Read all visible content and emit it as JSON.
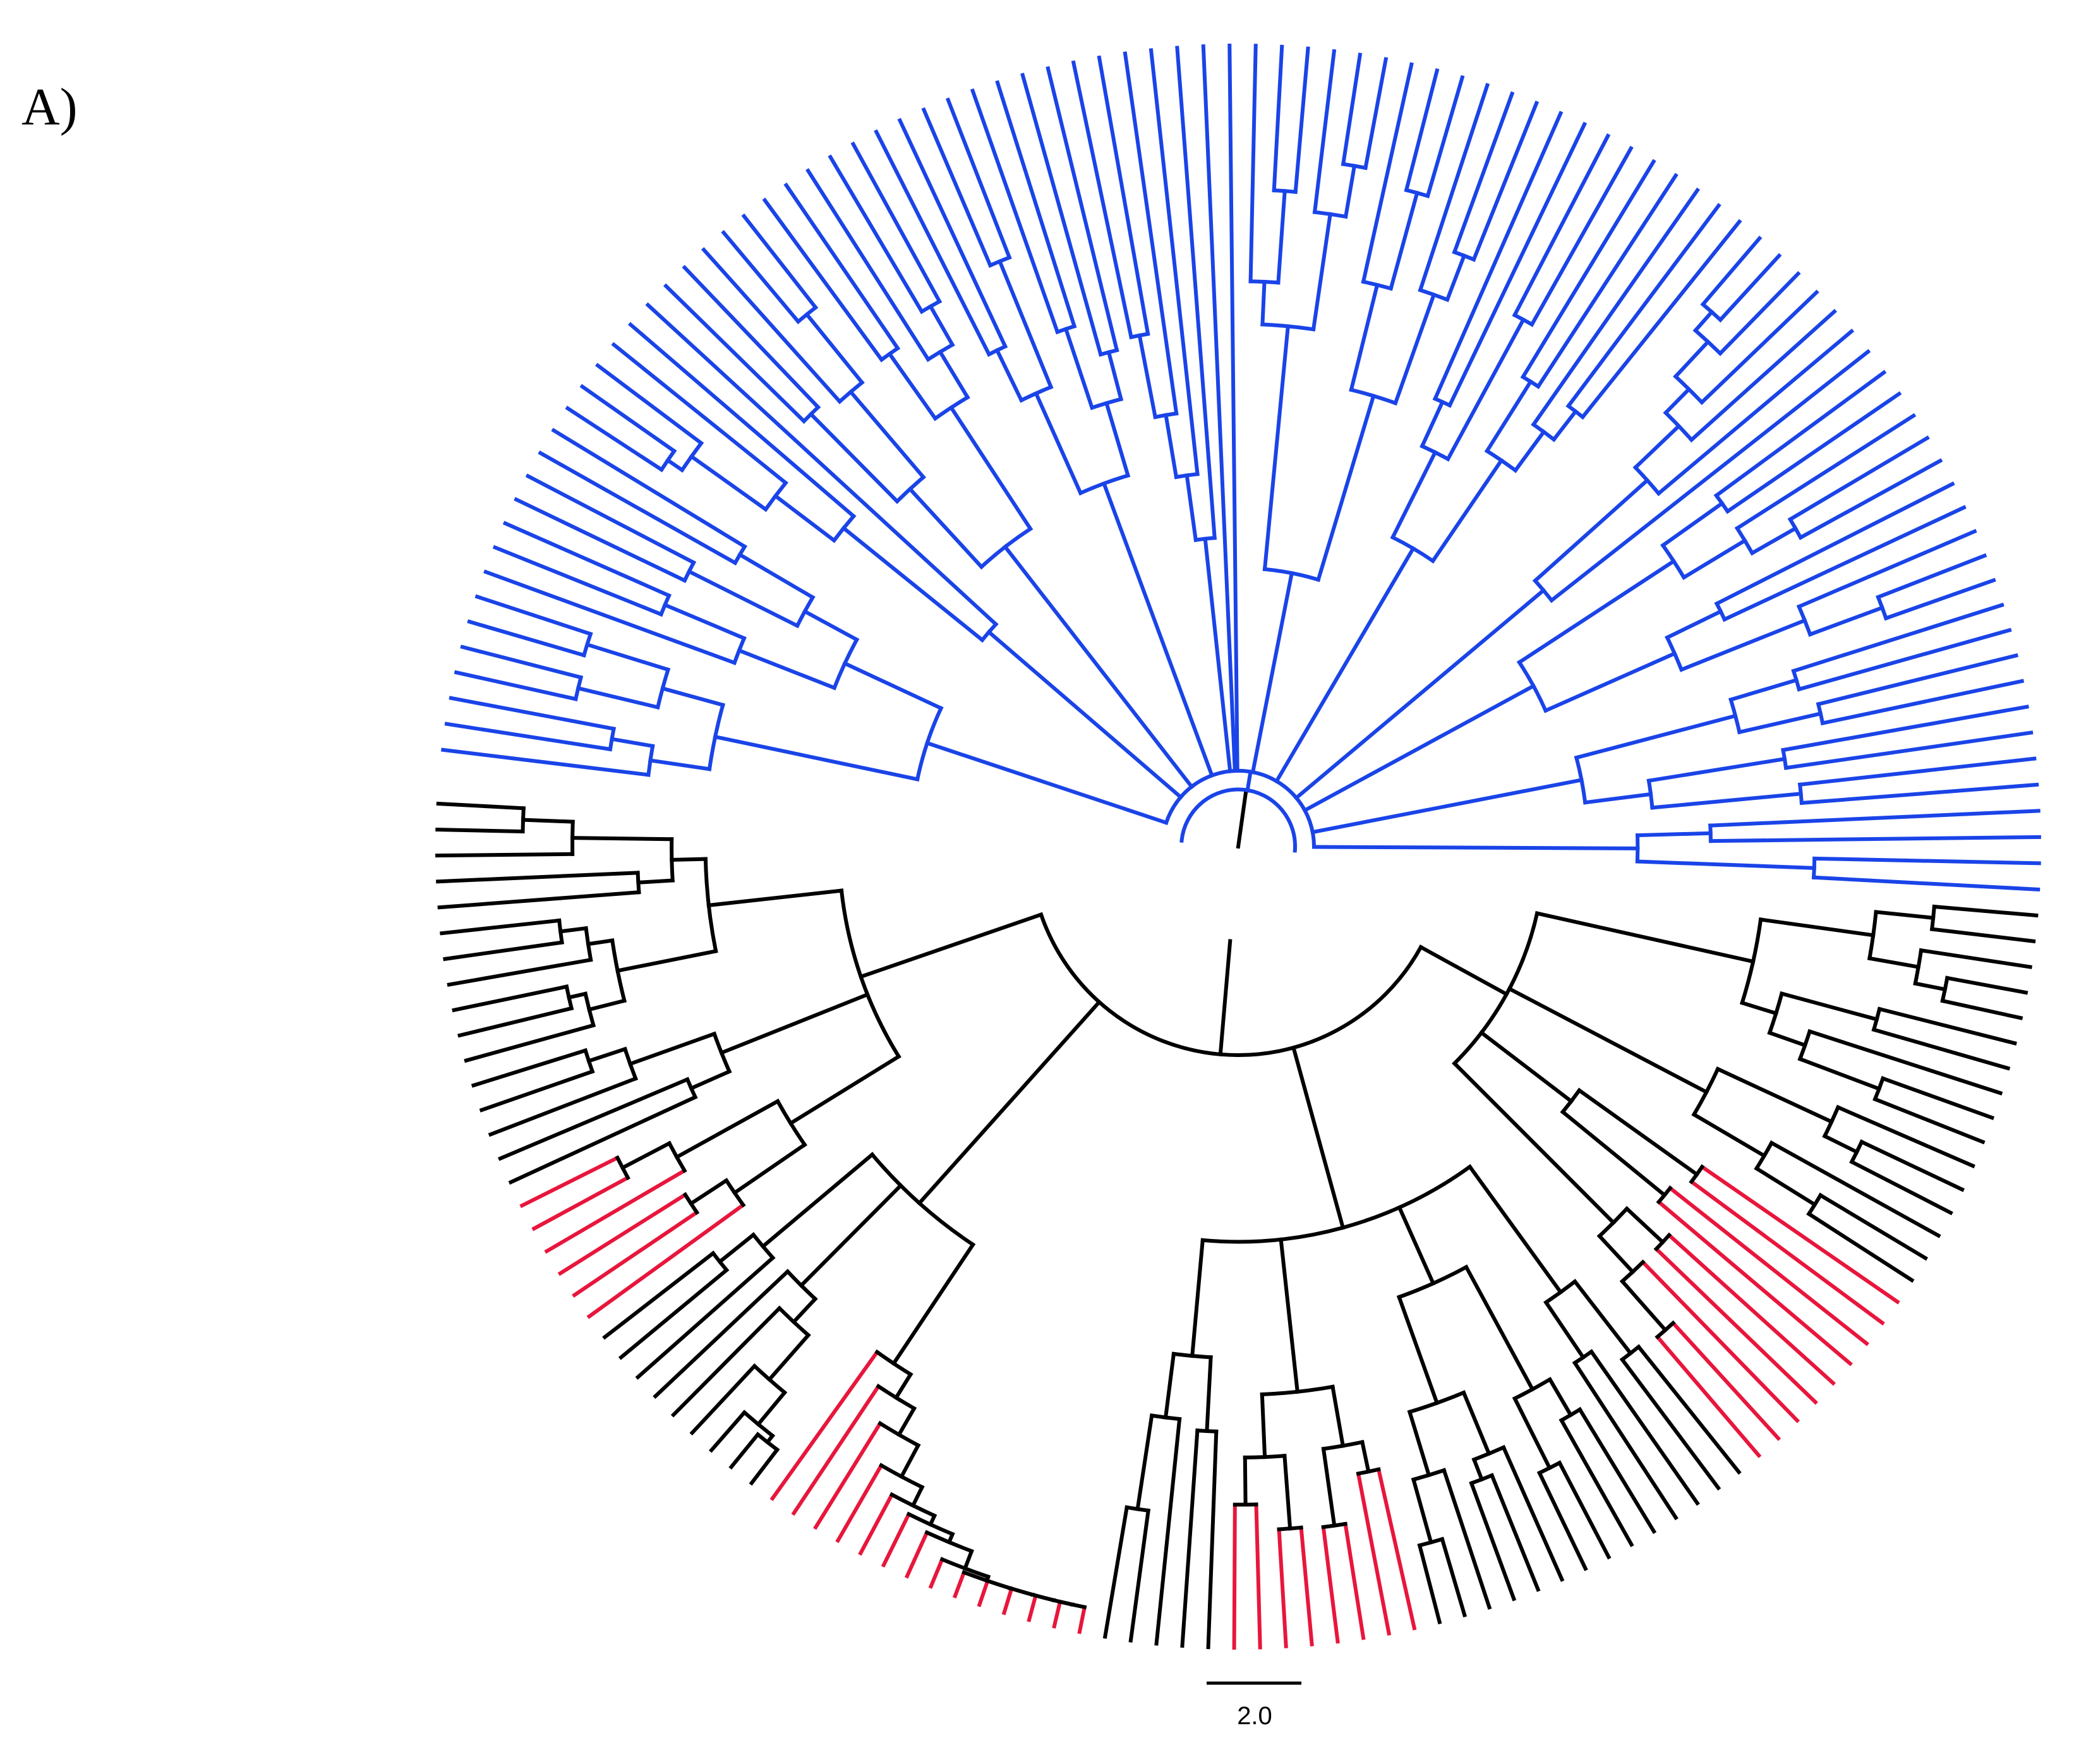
{
  "figure": {
    "panel_label": "A)",
    "scale_bar_label": "2.0",
    "colors": {
      "clade_blue": "#1a44e8",
      "highlight_red": "#e8163c",
      "base_black": "#000000"
    }
  }
}
